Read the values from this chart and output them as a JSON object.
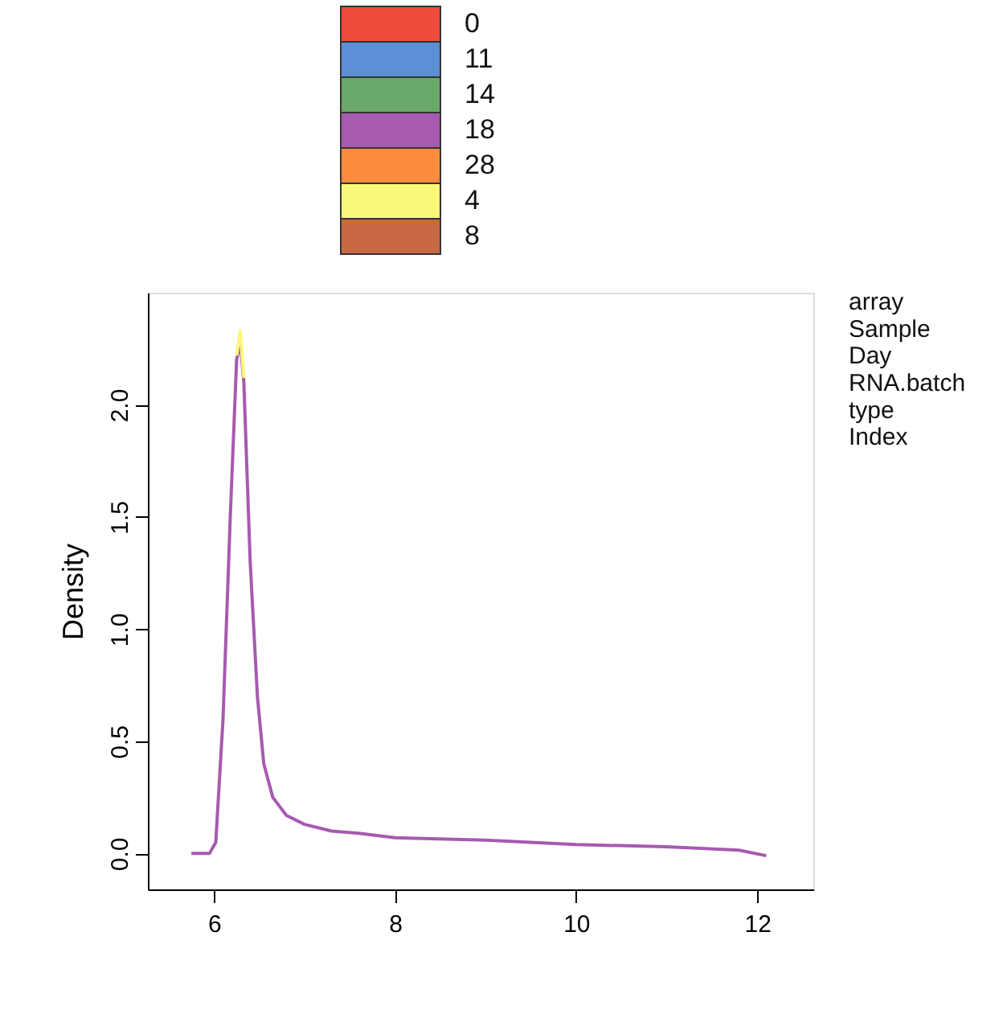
{
  "chart_data": {
    "type": "line",
    "ylabel": "Density",
    "x": [
      5.75,
      5.95,
      6.02,
      6.1,
      6.18,
      6.25,
      6.29,
      6.33,
      6.4,
      6.48,
      6.55,
      6.65,
      6.8,
      7.0,
      7.3,
      7.6,
      8.0,
      9.0,
      10.0,
      11.0,
      11.8,
      12.1
    ],
    "series": [
      {
        "name": "0",
        "color": "#ee4b3a",
        "values": [
          null,
          null,
          null,
          null,
          null,
          null,
          null,
          null,
          null,
          null,
          null,
          null,
          null,
          null,
          null,
          null,
          null,
          null,
          null,
          null,
          null,
          null
        ]
      },
      {
        "name": "11",
        "color": "#5b8fd6",
        "values": [
          null,
          null,
          null,
          null,
          null,
          null,
          null,
          null,
          null,
          null,
          null,
          null,
          null,
          null,
          null,
          null,
          null,
          null,
          null,
          null,
          null,
          null
        ]
      },
      {
        "name": "14",
        "color": "#6aa96a",
        "values": [
          null,
          null,
          null,
          null,
          null,
          null,
          null,
          null,
          null,
          null,
          null,
          null,
          null,
          null,
          null,
          null,
          null,
          null,
          null,
          null,
          null,
          null
        ]
      },
      {
        "name": "18",
        "color": "#a75ab0",
        "values": [
          0,
          0.0,
          0.05,
          0.6,
          1.5,
          2.2,
          2.28,
          2.1,
          1.3,
          0.7,
          0.4,
          0.25,
          0.17,
          0.13,
          0.1,
          0.09,
          0.07,
          0.06,
          0.04,
          0.03,
          0.015,
          -0.01
        ]
      },
      {
        "name": "28",
        "color": "#fb8c3c",
        "values": [
          null,
          null,
          null,
          null,
          null,
          null,
          null,
          null,
          null,
          null,
          null,
          null,
          null,
          null,
          null,
          null,
          null,
          null,
          null,
          null,
          null,
          null
        ]
      },
      {
        "name": "4",
        "color": "#fbf77a",
        "values": [
          null,
          null,
          null,
          null,
          null,
          2.22,
          2.33,
          2.12,
          null,
          null,
          null,
          null,
          null,
          null,
          null,
          null,
          null,
          null,
          null,
          null,
          null,
          null
        ]
      },
      {
        "name": "8",
        "color": "#c96845",
        "values": [
          null,
          null,
          null,
          null,
          null,
          null,
          null,
          null,
          null,
          null,
          null,
          null,
          null,
          null,
          null,
          null,
          null,
          null,
          null,
          null,
          null,
          null
        ]
      }
    ],
    "xlim": [
      5.27,
      12.62
    ],
    "xticks": [
      6,
      8,
      10,
      12
    ],
    "ylim": [
      -0.16,
      2.5
    ],
    "yticks": [
      {
        "value": 0,
        "label": "0.0"
      },
      0.5,
      {
        "value": 1,
        "label": "1.0"
      },
      1.5,
      {
        "value": 2,
        "label": "2.0"
      }
    ],
    "legend": "top",
    "grid": false,
    "marker": "none",
    "line_style": "solid",
    "annotations": [
      "array",
      "Sample",
      "Day",
      "RNA.batch",
      "type",
      "Index"
    ]
  }
}
